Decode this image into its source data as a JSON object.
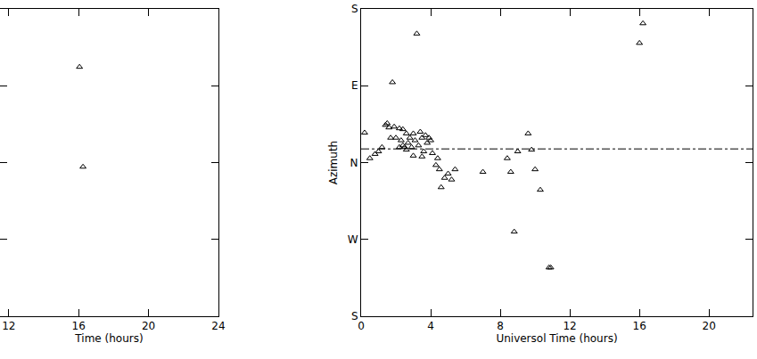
{
  "chart_data": [
    {
      "type": "scatter",
      "x_label": "Time (hours)",
      "xlim": [
        11.5,
        24
      ],
      "xticks": [
        12,
        16,
        20,
        24
      ],
      "ylim": [
        -180,
        180
      ],
      "yticks": [
        -180,
        -90,
        0,
        90,
        180
      ],
      "tick_labels": "x",
      "marker": "triangle-open",
      "color": "#000000",
      "x": [
        16.05,
        16.25
      ],
      "values": [
        112,
        -5
      ]
    },
    {
      "type": "scatter",
      "x_label": "Universol Time (hours)",
      "y_label": "Azimuth",
      "xlim": [
        0,
        22.5
      ],
      "xticks": [
        0,
        4,
        8,
        12,
        16,
        20
      ],
      "ylim": [
        -180,
        180
      ],
      "yticks": [
        {
          "value": -180,
          "label": "S"
        },
        {
          "value": -90,
          "label": "W"
        },
        {
          "value": 0,
          "label": "N"
        },
        {
          "value": 90,
          "label": "E"
        },
        {
          "value": 180,
          "label": "S"
        }
      ],
      "marker": "triangle-open",
      "color": "#000000",
      "reference_line": {
        "y": 16,
        "line_style": "dashdot"
      },
      "x": [
        0.2,
        0.5,
        0.8,
        1.0,
        1.2,
        1.4,
        1.5,
        1.6,
        1.8,
        1.7,
        1.9,
        2.0,
        2.2,
        2.3,
        2.4,
        2.5,
        2.6,
        2.7,
        2.8,
        2.9,
        3.0,
        3.1,
        3.2,
        3.3,
        3.4,
        3.5,
        3.6,
        3.7,
        3.8,
        3.9,
        4.0,
        4.1,
        2.4,
        2.2,
        2.6,
        3.0,
        3.5,
        4.3,
        4.5,
        4.6,
        4.8,
        5.0,
        5.2,
        5.4,
        4.4,
        7.0,
        8.4,
        8.6,
        8.8,
        9.0,
        9.6,
        9.8,
        10.0,
        10.3,
        10.8,
        10.9,
        16.0,
        16.2
      ],
      "values": [
        35,
        5,
        10,
        13,
        18,
        44,
        46,
        41,
        94,
        29,
        42,
        29,
        40,
        26,
        39,
        18,
        34,
        23,
        29,
        18,
        34,
        26,
        151,
        20,
        36,
        29,
        13,
        32,
        23,
        29,
        26,
        11,
        20,
        18,
        15,
        8,
        7,
        -3,
        -8,
        -29,
        -18,
        -13,
        -20,
        -8,
        5,
        -11,
        5,
        -11,
        -81,
        13,
        34,
        15,
        -8,
        -32,
        -123,
        -123,
        140,
        163
      ]
    }
  ]
}
